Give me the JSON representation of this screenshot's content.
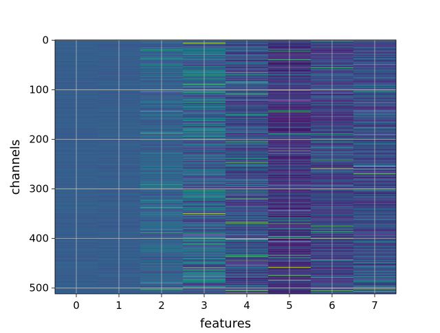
{
  "chart_data": {
    "type": "heatmap",
    "title": "",
    "xlabel": "features",
    "ylabel": "channels",
    "x_ticks": [
      "0",
      "1",
      "2",
      "3",
      "4",
      "5",
      "6",
      "7"
    ],
    "y_ticks": [
      "0",
      "100",
      "200",
      "300",
      "400",
      "500"
    ],
    "x_range": [
      -0.5,
      7.5
    ],
    "y_range": [
      0,
      511
    ],
    "n_channels": 512,
    "n_features": 8,
    "colormap": "viridis",
    "grid": true,
    "legend": "none",
    "colorbar": false,
    "column_profiles": [
      {
        "feature": 0,
        "base": 0.3,
        "spread": 0.025,
        "spike_rate": 0.0
      },
      {
        "feature": 1,
        "base": 0.3,
        "spread": 0.03,
        "spike_rate": 0.0
      },
      {
        "feature": 2,
        "base": 0.32,
        "spread": 0.09,
        "spike_rate": 0.02
      },
      {
        "feature": 3,
        "base": 0.32,
        "spread": 0.18,
        "spike_rate": 0.05
      },
      {
        "feature": 4,
        "base": 0.24,
        "spread": 0.15,
        "spike_rate": 0.04
      },
      {
        "feature": 5,
        "base": 0.16,
        "spread": 0.12,
        "spike_rate": 0.04
      },
      {
        "feature": 6,
        "base": 0.22,
        "spread": 0.14,
        "spike_rate": 0.03
      },
      {
        "feature": 7,
        "base": 0.24,
        "spread": 0.15,
        "spike_rate": 0.04
      }
    ],
    "highlight_rows": [
      {
        "feature": 3,
        "channel": 6,
        "value": 0.95
      },
      {
        "feature": 3,
        "channel": 350,
        "value": 0.92
      },
      {
        "feature": 3,
        "channel": 459,
        "value": 0.9
      },
      {
        "feature": 4,
        "channel": 401,
        "value": 0.93
      },
      {
        "feature": 5,
        "channel": 121,
        "value": 0.85
      },
      {
        "feature": 5,
        "channel": 458,
        "value": 0.95
      },
      {
        "feature": 6,
        "channel": 259,
        "value": 0.95
      },
      {
        "feature": 6,
        "channel": 505,
        "value": 0.8
      },
      {
        "feature": 7,
        "channel": 254,
        "value": 0.9
      }
    ]
  }
}
